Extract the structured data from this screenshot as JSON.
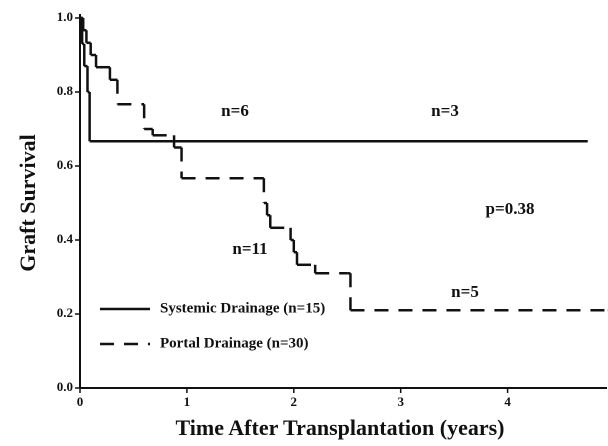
{
  "chart_data": {
    "type": "step",
    "x_label": "Time After Transplantation (years)",
    "y_label": "Graft Survival",
    "xlim": [
      0,
      4.93
    ],
    "ylim": [
      0,
      1.0
    ],
    "xticks": [
      0,
      1,
      2,
      3,
      4
    ],
    "yticks": [
      {
        "value": 0,
        "label": "0.0"
      },
      0.2,
      0.4,
      0.6,
      0.8,
      {
        "value": 1.0,
        "label": "1.0"
      }
    ],
    "legend": "lower left",
    "series": [
      {
        "name": "Systemic Drainage (n=15)",
        "color": "#111111",
        "style": "solid",
        "x": [
          0,
          0.02,
          0.04,
          0.07,
          0.09,
          4.75
        ],
        "values": [
          1.0,
          0.93,
          0.87,
          0.8,
          0.667,
          0.667
        ]
      },
      {
        "name": "Portal Drainage (n=30)",
        "color": "#111111",
        "style": "dashed",
        "x": [
          0,
          0.03,
          0.06,
          0.1,
          0.15,
          0.28,
          0.35,
          0.6,
          0.68,
          0.88,
          0.95,
          1.72,
          1.75,
          1.78,
          1.97,
          2.0,
          2.03,
          2.2,
          2.5,
          2.53,
          4.93
        ],
        "values": [
          1.0,
          0.967,
          0.933,
          0.9,
          0.867,
          0.833,
          0.767,
          0.7,
          0.683,
          0.65,
          0.567,
          0.5,
          0.467,
          0.433,
          0.4,
          0.367,
          0.333,
          0.31,
          0.31,
          0.21,
          0.21
        ]
      }
    ],
    "annotations": [
      "n=6",
      "n=3",
      "p=0.38",
      "n=11",
      "n=5"
    ]
  }
}
